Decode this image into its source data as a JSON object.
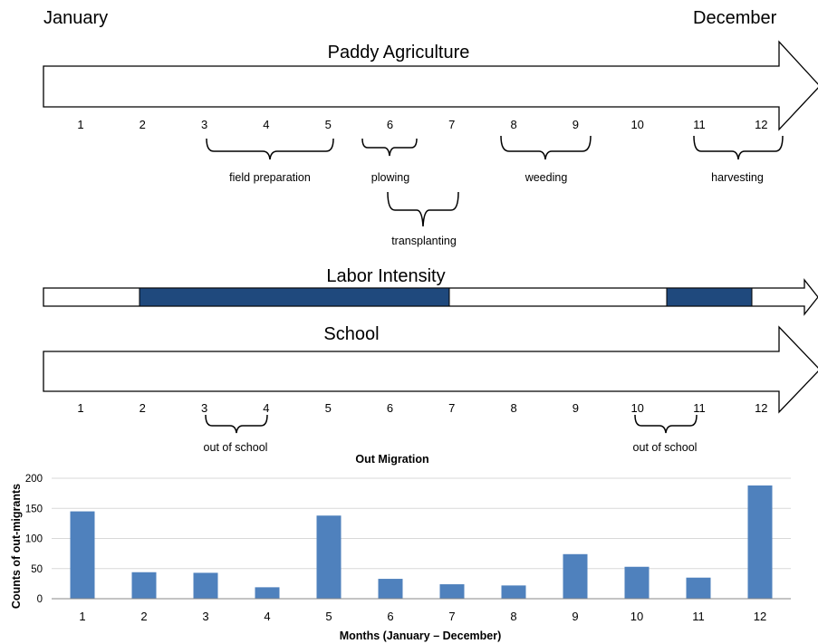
{
  "header": {
    "start_label": "January",
    "end_label": "December"
  },
  "paddy": {
    "title": "Paddy Agriculture",
    "months": [
      "1",
      "2",
      "3",
      "4",
      "5",
      "6",
      "7",
      "8",
      "9",
      "10",
      "11",
      "12"
    ],
    "activities": {
      "field_preparation": "field preparation",
      "plowing": "plowing",
      "weeding": "weeding",
      "harvesting": "harvesting",
      "transplanting": "transplanting"
    }
  },
  "labor": {
    "title": "Labor Intensity",
    "bar_color": "#1f497d"
  },
  "school": {
    "title": "School",
    "months": [
      "1",
      "2",
      "3",
      "4",
      "5",
      "6",
      "7",
      "8",
      "9",
      "10",
      "11",
      "12"
    ],
    "out_of_school_1": "out of school",
    "out_of_school_2": "out of school"
  },
  "chart_data": {
    "type": "bar",
    "title": "Out Migration",
    "xlabel": "Months (January – December)",
    "ylabel": "Counts of out-migrants",
    "categories": [
      "1",
      "2",
      "3",
      "4",
      "5",
      "6",
      "7",
      "8",
      "9",
      "10",
      "11",
      "12"
    ],
    "values": [
      145,
      44,
      43,
      19,
      138,
      33,
      24,
      22,
      74,
      53,
      35,
      188
    ],
    "ylim": [
      0,
      200
    ],
    "yticks": [
      "0",
      "50",
      "100",
      "150",
      "200"
    ],
    "grid": true,
    "bar_color": "#4f81bd"
  }
}
